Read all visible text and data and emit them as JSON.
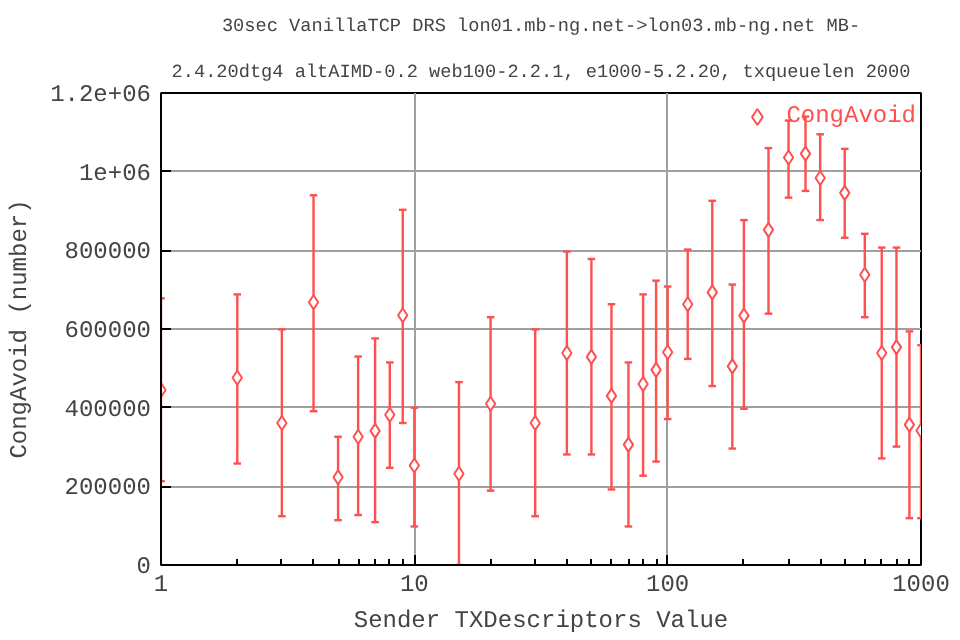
{
  "chart_data": {
    "type": "scatter",
    "title": "30sec VanillaTCP DRS lon01.mb-ng.net->lon03.mb-ng.net MB-",
    "subtitle": "2.4.20dtg4 altAIMD-0.2 web100-2.2.1, e1000-5.2.20, txqueuelen 2000",
    "xlabel": "Sender TXDescriptors Value",
    "ylabel": "CongAvoid (number)",
    "x": [
      1,
      2,
      3,
      4,
      5,
      6,
      7,
      8,
      9,
      10,
      15,
      20,
      30,
      40,
      50,
      60,
      70,
      80,
      90,
      100,
      120,
      150,
      180,
      200,
      250,
      300,
      350,
      400,
      500,
      600,
      700,
      800,
      900,
      1000
    ],
    "series": [
      {
        "name": "CongAvoid",
        "color": "#ff5050",
        "values": [
          445000,
          476000,
          361000,
          668000,
          223000,
          326000,
          341000,
          382000,
          635000,
          253000,
          232000,
          410000,
          361000,
          539000,
          529000,
          430000,
          306000,
          460000,
          496000,
          541000,
          663000,
          693000,
          505000,
          634000,
          852000,
          1036000,
          1046000,
          984000,
          946000,
          738000,
          539000,
          554000,
          357000,
          342000
        ],
        "errors": [
          [
            213000,
            678000
          ],
          [
            258000,
            688000
          ],
          [
            124000,
            599000
          ],
          [
            391000,
            940000
          ],
          [
            114000,
            326000
          ],
          [
            127000,
            530000
          ],
          [
            109000,
            576000
          ],
          [
            247000,
            515000
          ],
          [
            361000,
            903000
          ],
          [
            98000,
            400000
          ],
          [
            0,
            465000
          ],
          [
            189000,
            630000
          ],
          [
            124000,
            599000
          ],
          [
            281000,
            797000
          ],
          [
            281000,
            778000
          ],
          [
            192000,
            663000
          ],
          [
            98000,
            515000
          ],
          [
            227000,
            688000
          ],
          [
            263000,
            723000
          ],
          [
            371000,
            708000
          ],
          [
            524000,
            802000
          ],
          [
            455000,
            926000
          ],
          [
            296000,
            713000
          ],
          [
            397000,
            877000
          ],
          [
            639000,
            1060000
          ],
          [
            934000,
            1130000
          ],
          [
            951000,
            1140000
          ],
          [
            877000,
            1095000
          ],
          [
            832000,
            1058000
          ],
          [
            630000,
            842000
          ],
          [
            271000,
            807000
          ],
          [
            301000,
            807000
          ],
          [
            119000,
            594000
          ],
          [
            119000,
            559000
          ]
        ]
      }
    ],
    "log": "x",
    "xlim": [
      1,
      1000
    ],
    "xticks": [
      1,
      10,
      100,
      1000
    ],
    "ylim": [
      0,
      1200000
    ],
    "yticks": [
      0,
      200000,
      400000,
      600000,
      800000,
      {
        "value": 1000000,
        "label": "1e+06"
      },
      {
        "value": 1200000,
        "label": "1.2e+06"
      }
    ],
    "grid": true,
    "legend": "top right",
    "marker": "diamond"
  }
}
